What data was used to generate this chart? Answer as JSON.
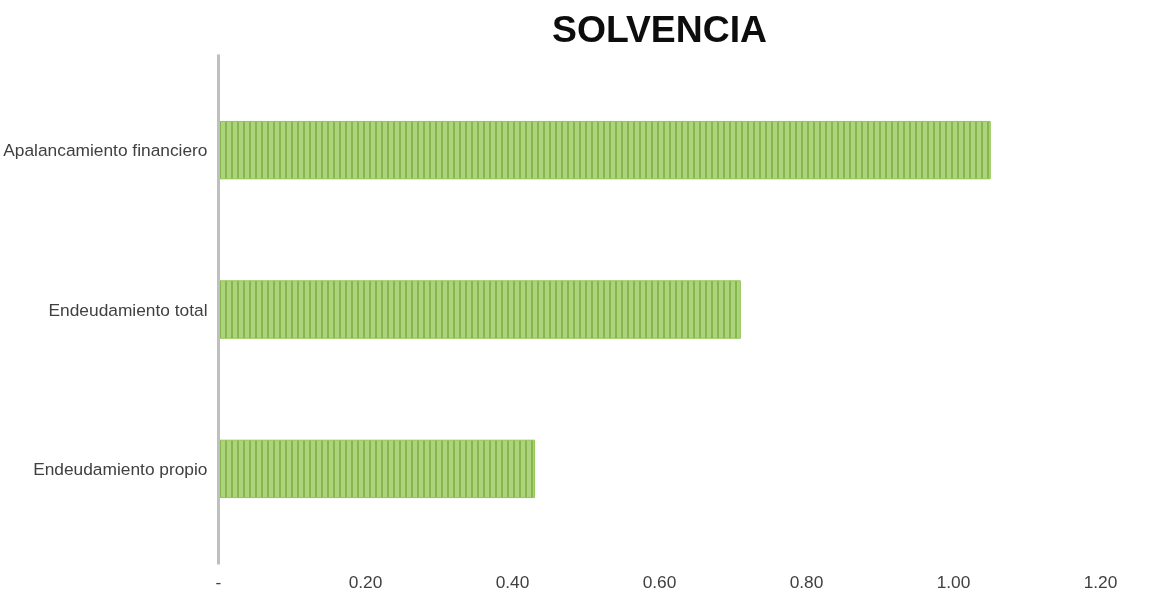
{
  "chart_data": {
    "type": "bar",
    "orientation": "horizontal",
    "title": "SOLVENCIA",
    "categories": [
      "Apalancamiento financiero",
      "Endeudamiento total",
      "Endeudamiento propio"
    ],
    "values": [
      1.05,
      0.71,
      0.43
    ],
    "color": "#92c550",
    "xlim": [
      0,
      1.2
    ],
    "xticks": [
      {
        "value": 0,
        "label": "-"
      },
      {
        "value": 0.2,
        "label": "0.20"
      },
      {
        "value": 0.4,
        "label": "0.40"
      },
      {
        "value": 0.6,
        "label": "0.60"
      },
      {
        "value": 0.8,
        "label": "0.80"
      },
      {
        "value": 1.0,
        "label": "1.00"
      },
      {
        "value": 1.2,
        "label": "1.20"
      }
    ],
    "grid": false
  }
}
